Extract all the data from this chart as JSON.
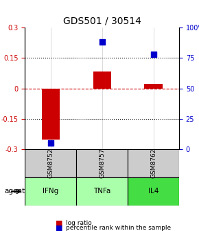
{
  "title": "GDS501 / 30514",
  "samples": [
    "GSM8752",
    "GSM8757",
    "GSM8762"
  ],
  "agents": [
    "IFNg",
    "TNFa",
    "IL4"
  ],
  "log_ratios": [
    -0.255,
    0.082,
    0.022
  ],
  "percentile_ranks": [
    5.0,
    88.0,
    78.0
  ],
  "ylim_left": [
    -0.3,
    0.3
  ],
  "ylim_right": [
    0,
    100
  ],
  "yticks_left": [
    -0.3,
    -0.15,
    0,
    0.15,
    0.3
  ],
  "yticks_right": [
    0,
    25,
    50,
    75,
    100
  ],
  "ytick_labels_left": [
    "-0.3",
    "-0.15",
    "0",
    "0.15",
    "0.3"
  ],
  "ytick_labels_right": [
    "0",
    "25",
    "50",
    "75",
    "100%"
  ],
  "hlines": [
    -0.15,
    0,
    0.15
  ],
  "red_color": "#cc0000",
  "blue_color": "#0000cc",
  "bar_width": 0.35,
  "cell_colors_gsm": [
    "#cccccc",
    "#cccccc",
    "#cccccc"
  ],
  "cell_colors_agent": [
    "#aaffaa",
    "#aaffaa",
    "#44dd44"
  ],
  "bg_color": "#ffffff"
}
